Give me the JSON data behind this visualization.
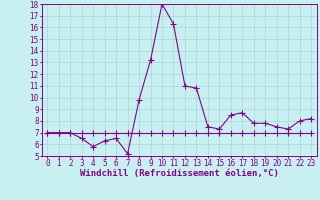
{
  "xlabel": "Windchill (Refroidissement éolien,°C)",
  "bg_color": "#c8f0f0",
  "line_color": "#880088",
  "grid_color": "#a8d8d8",
  "x_values": [
    0,
    1,
    2,
    3,
    4,
    5,
    6,
    7,
    8,
    9,
    10,
    11,
    12,
    13,
    14,
    15,
    16,
    17,
    18,
    19,
    20,
    21,
    22,
    23
  ],
  "line1_y": [
    7.0,
    7.0,
    7.0,
    7.0,
    7.0,
    7.0,
    7.0,
    7.0,
    7.0,
    7.0,
    7.0,
    7.0,
    7.0,
    7.0,
    7.0,
    7.0,
    7.0,
    7.0,
    7.0,
    7.0,
    7.0,
    7.0,
    7.0,
    7.0
  ],
  "line2_y": [
    7.0,
    7.0,
    7.0,
    6.5,
    5.8,
    6.3,
    6.5,
    5.2,
    9.8,
    13.2,
    18.0,
    16.3,
    11.0,
    10.8,
    7.5,
    7.3,
    8.5,
    8.7,
    7.8,
    7.8,
    7.5,
    7.3,
    8.0,
    8.2
  ],
  "xlim": [
    -0.5,
    23.5
  ],
  "ylim": [
    5,
    18
  ],
  "yticks": [
    5,
    6,
    7,
    8,
    9,
    10,
    11,
    12,
    13,
    14,
    15,
    16,
    17,
    18
  ],
  "xticks": [
    0,
    1,
    2,
    3,
    4,
    5,
    6,
    7,
    8,
    9,
    10,
    11,
    12,
    13,
    14,
    15,
    16,
    17,
    18,
    19,
    20,
    21,
    22,
    23
  ],
  "marker": "+",
  "markersize": 4,
  "linewidth": 0.8,
  "axis_fontsize": 6.5,
  "tick_fontsize": 5.5
}
